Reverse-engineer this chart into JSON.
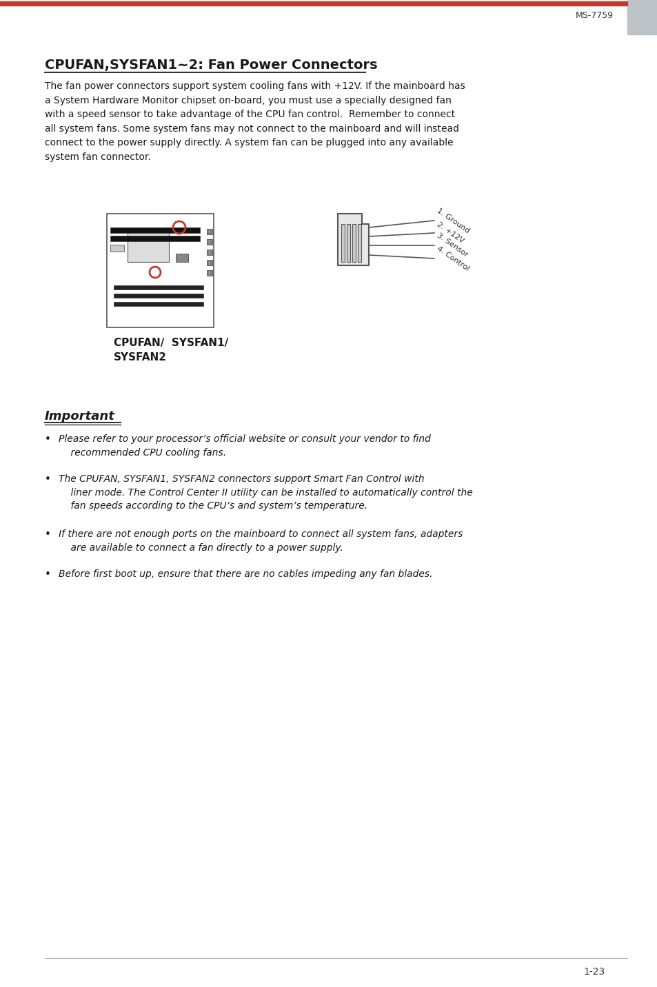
{
  "page_header_right": "MS-7759",
  "title": "CPUFAN,SYSFAN1~2: Fan Power Connectors",
  "body_text": "The fan power connectors support system cooling fans with +12V. If the mainboard has\na System Hardware Monitor chipset on-board, you must use a specially designed fan\nwith a speed sensor to take advantage of the CPU fan control.  Remember to connect\nall system fans. Some system fans may not connect to the mainboard and will instead\nconnect to the power supply directly. A system fan can be plugged into any available\nsystem fan connector.",
  "connector_label": "CPUFAN/  SYSFAN1/\nSYSFAN2",
  "pin_labels": [
    "1. Ground",
    "2. +12V",
    "3. Sensor",
    "4. Control"
  ],
  "important_label": "Important",
  "bullet_points": [
    "Please refer to your processor’s official website or consult your vendor to find\n    recommended CPU cooling fans.",
    "The CPUFAN, SYSFAN1, SYSFAN2 connectors support Smart Fan Control with\n    liner mode. The Control Center II utility can be installed to automatically control the\n    fan speeds according to the CPU’s and system’s temperature.",
    "If there are not enough ports on the mainboard to connect all system fans, adapters\n    are available to connect a fan directly to a power supply.",
    "Before first boot up, ensure that there are no cables impeding any fan blades."
  ],
  "page_number": "1-23",
  "top_bar_color": "#c0392b",
  "right_tab_color": "#bdc3c7",
  "title_color": "#1a1a1a",
  "text_color": "#1a1a1a",
  "background_color": "#ffffff"
}
